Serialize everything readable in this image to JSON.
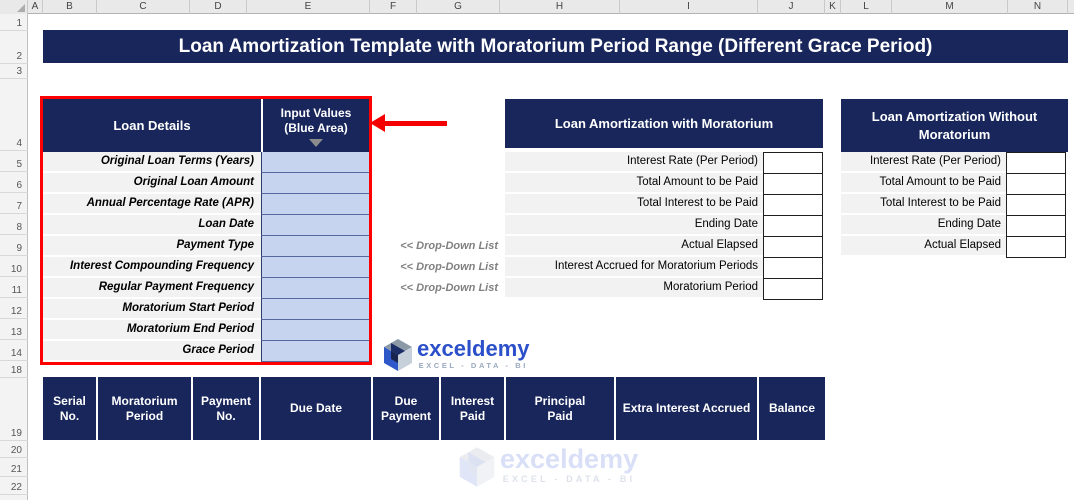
{
  "title": "Loan Amortization Template with Moratorium Period Range (Different Grace Period)",
  "spreadsheet": {
    "columns": [
      "A",
      "B",
      "C",
      "D",
      "E",
      "F",
      "G",
      "H",
      "I",
      "J",
      "K",
      "L",
      "M",
      "N"
    ],
    "rows": [
      "1",
      "2",
      "3",
      "4",
      "5",
      "6",
      "7",
      "8",
      "9",
      "10",
      "11",
      "12",
      "13",
      "14",
      "18",
      "19",
      "20",
      "21",
      "22"
    ]
  },
  "loan_details": {
    "header": "Loan Details",
    "input_header_line1": "Input Values",
    "input_header_line2": "(Blue Area)",
    "fields": [
      "Original Loan Terms (Years)",
      "Original Loan Amount",
      "Annual Percentage Rate (APR)",
      "Loan Date",
      "Payment Type",
      "Interest Compounding Frequency",
      "Regular Payment Frequency",
      "Moratorium Start Period",
      "Moratorium End Period",
      "Grace Period"
    ]
  },
  "dropdown_note": "<< Drop-Down List",
  "with_moratorium": {
    "header": "Loan Amortization with Moratorium",
    "fields": [
      "Interest Rate (Per Period)",
      "Total Amount to be Paid",
      "Total Interest to be Paid",
      "Ending Date",
      "Actual  Elapsed",
      "Interest Accrued for Moratorium Periods",
      "Moratorium Period"
    ]
  },
  "without_moratorium": {
    "header": "Loan Amortization Without Moratorium",
    "fields": [
      "Interest Rate (Per Period)",
      "Total Amount to be Paid",
      "Total Interest to be Paid",
      "Ending Date",
      "Actual  Elapsed"
    ]
  },
  "schedule": {
    "headers": [
      "Serial No.",
      "Moratorium Period",
      "Payment No.",
      "Due Date",
      "Due Payment",
      "Interest Paid",
      "Principal Paid",
      "Extra Interest Accrued",
      "Balance"
    ]
  },
  "brand": {
    "name": "exceldemy",
    "tagline": "EXCEL - DATA - BI"
  },
  "colors": {
    "navy": "#18265B",
    "input_blue": "#C6D4EF",
    "label_gray": "#F2F2F2",
    "accent_red": "#FE0000",
    "brand_blue": "#2C50C9"
  }
}
